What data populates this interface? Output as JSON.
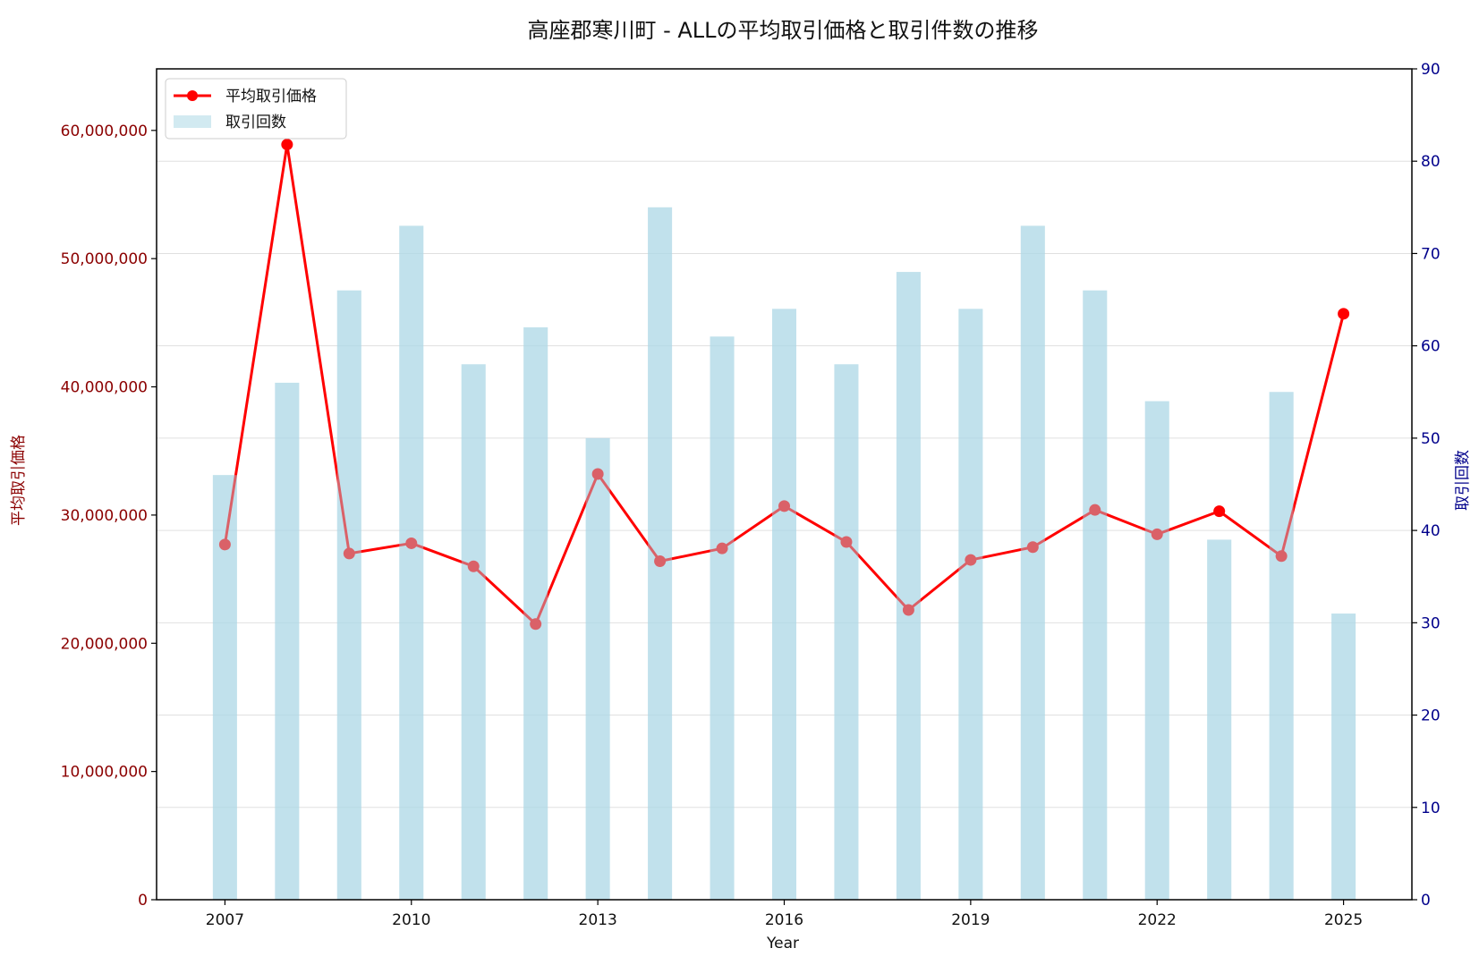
{
  "chart_data": {
    "type": "bar+line",
    "title": "高座郡寒川町 - ALLの平均取引価格と取引件数の推移",
    "xlabel": "Year",
    "ylabel_left": "平均取引価格",
    "ylabel_right": "取引回数",
    "x": [
      2007,
      2008,
      2009,
      2010,
      2011,
      2012,
      2013,
      2014,
      2015,
      2016,
      2017,
      2018,
      2019,
      2020,
      2021,
      2022,
      2023,
      2024,
      2025
    ],
    "x_ticks": [
      "2007",
      "2010",
      "2013",
      "2016",
      "2019",
      "2022",
      "2025"
    ],
    "xlim": [
      2005.9,
      2026.1
    ],
    "ylim_left": [
      0,
      64800000
    ],
    "ylim_right": [
      0,
      90
    ],
    "left_ticks": [
      0,
      10000000,
      20000000,
      30000000,
      40000000,
      50000000,
      60000000
    ],
    "left_tick_labels": [
      "0",
      "10,000,000",
      "20,000,000",
      "30,000,000",
      "40,000,000",
      "50,000,000",
      "60,000,000"
    ],
    "right_ticks": [
      0,
      10,
      20,
      30,
      40,
      50,
      60,
      70,
      80,
      90
    ],
    "right_tick_labels": [
      "0",
      "10",
      "20",
      "30",
      "40",
      "50",
      "60",
      "70",
      "80",
      "90"
    ],
    "grid": "horizontal (right axis)",
    "legend_position": "top-left",
    "series": [
      {
        "name": "平均取引価格",
        "kind": "line",
        "axis": "left",
        "color": "#ff0000",
        "values": [
          27700000,
          58900000,
          27000000,
          27800000,
          26000000,
          21500000,
          33200000,
          26400000,
          27400000,
          30700000,
          27900000,
          22600000,
          26500000,
          27500000,
          30400000,
          28500000,
          30300000,
          26800000,
          45700000
        ]
      },
      {
        "name": "取引回数",
        "kind": "bar",
        "axis": "right",
        "color": "#add8e6",
        "values": [
          46,
          56,
          66,
          73,
          58,
          62,
          50,
          75,
          61,
          64,
          58,
          68,
          64,
          73,
          66,
          54,
          39,
          55,
          31
        ]
      }
    ]
  }
}
